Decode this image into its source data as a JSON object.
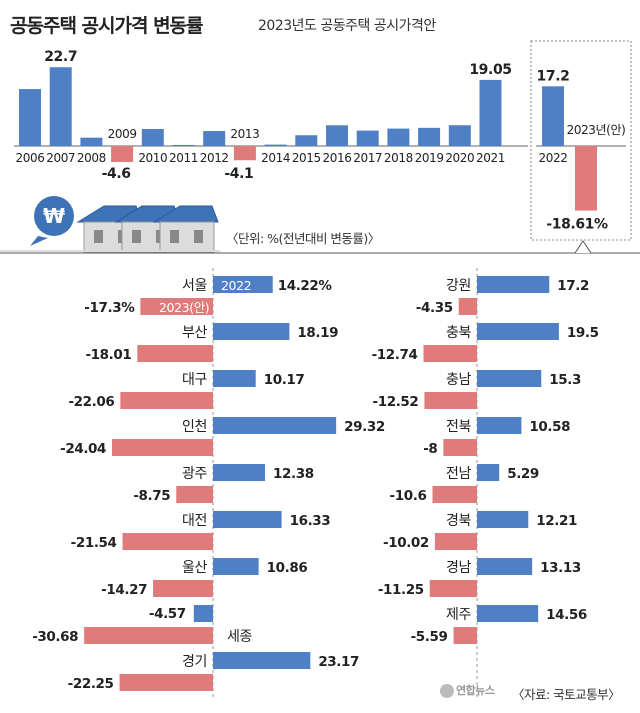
{
  "header": {
    "title": "공동주택 공시가격 변동률",
    "subtitle": "2023년도 공동주택 공시가격안"
  },
  "unit_note": "〈단위: %(전년대비 변동률)〉",
  "source": "〈자료: 국토교통부〉",
  "logo_text": "연합뉴스",
  "icons": {
    "won": "₩"
  },
  "colors": {
    "positive": "#4f7fc4",
    "negative": "#e07b7b",
    "accent_blue": "#3f73b8"
  },
  "chart_data": [
    {
      "type": "bar",
      "categories": [
        "2006",
        "2007",
        "2008",
        "2009",
        "2010",
        "2011",
        "2012",
        "2013",
        "2014",
        "2015",
        "2016",
        "2017",
        "2018",
        "2019",
        "2020",
        "2021",
        "2022",
        "2023"
      ],
      "category_labels": [
        "2006",
        "2007",
        "2008",
        "2009",
        "2010",
        "2011",
        "2012",
        "2013",
        "2014",
        "2015",
        "2016",
        "2017",
        "2018",
        "2019",
        "2020",
        "2021",
        "2022",
        "2023년(안)"
      ],
      "values": [
        16.4,
        22.7,
        2.4,
        -4.6,
        4.9,
        0.3,
        4.3,
        -4.1,
        0.4,
        3.1,
        5.97,
        4.44,
        5.02,
        5.23,
        5.98,
        19.05,
        17.2,
        -18.61
      ],
      "value_labels": [
        "",
        "22.7",
        "",
        "-4.6",
        "",
        "",
        "",
        "-4.1",
        "",
        "",
        "",
        "",
        "",
        "",
        "",
        "19.05",
        "17.2",
        "-18.61%"
      ],
      "highlight_category": "2023"
    },
    {
      "type": "bar",
      "orientation": "horizontal",
      "series": [
        {
          "name": "2022",
          "values": [
            14.22,
            18.19,
            10.17,
            29.32,
            12.38,
            16.33,
            10.86,
            -4.57,
            23.17,
            17.2,
            19.5,
            15.3,
            10.58,
            5.29,
            12.21,
            13.13,
            14.56
          ]
        },
        {
          "name": "2023(안)",
          "values": [
            -17.3,
            -18.01,
            -22.06,
            -24.04,
            -8.75,
            -21.54,
            -14.27,
            -30.68,
            -22.25,
            -4.35,
            -12.74,
            -12.52,
            -8,
            -10.6,
            -10.02,
            -11.25,
            -5.59
          ]
        }
      ],
      "categories": [
        "서울",
        "부산",
        "대구",
        "인천",
        "광주",
        "대전",
        "울산",
        "세종",
        "경기",
        "강원",
        "충북",
        "충남",
        "전북",
        "전남",
        "경북",
        "경남",
        "제주"
      ],
      "value_labels_2022": [
        "14.22%",
        "18.19",
        "10.17",
        "29.32",
        "12.38",
        "16.33",
        "10.86",
        "-4.57",
        "23.17",
        "17.2",
        "19.5",
        "15.3",
        "10.58",
        "5.29",
        "12.21",
        "13.13",
        "14.56"
      ],
      "value_labels_2023": [
        "-17.3%",
        "-18.01",
        "-22.06",
        "-24.04",
        "-8.75",
        "-21.54",
        "-14.27",
        "-30.68",
        "-22.25",
        "-4.35",
        "-12.74",
        "-12.52",
        "-8",
        "-10.6",
        "-10.02",
        "-11.25",
        "-5.59"
      ]
    }
  ]
}
